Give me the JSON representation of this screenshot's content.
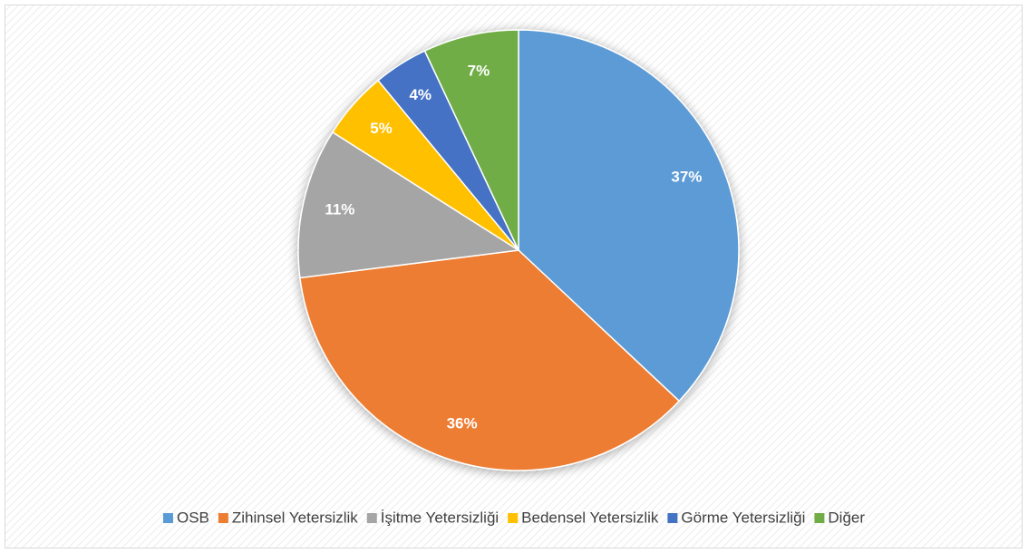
{
  "chart_data": {
    "type": "pie",
    "categories": [
      "OSB",
      "Zihinsel Yetersizlik",
      "İşitme Yetersizliği",
      "Bedensel Yetersizlik",
      "Görme Yetersizliği",
      "Diğer"
    ],
    "values": [
      37,
      36,
      11,
      5,
      4,
      7
    ],
    "value_labels": [
      "37%",
      "36%",
      "11%",
      "5%",
      "4%",
      "7%"
    ],
    "colors": [
      "#5b9bd5",
      "#ed7d31",
      "#a5a5a5",
      "#ffc000",
      "#4472c4",
      "#70ad47"
    ],
    "legend": "bottom"
  }
}
